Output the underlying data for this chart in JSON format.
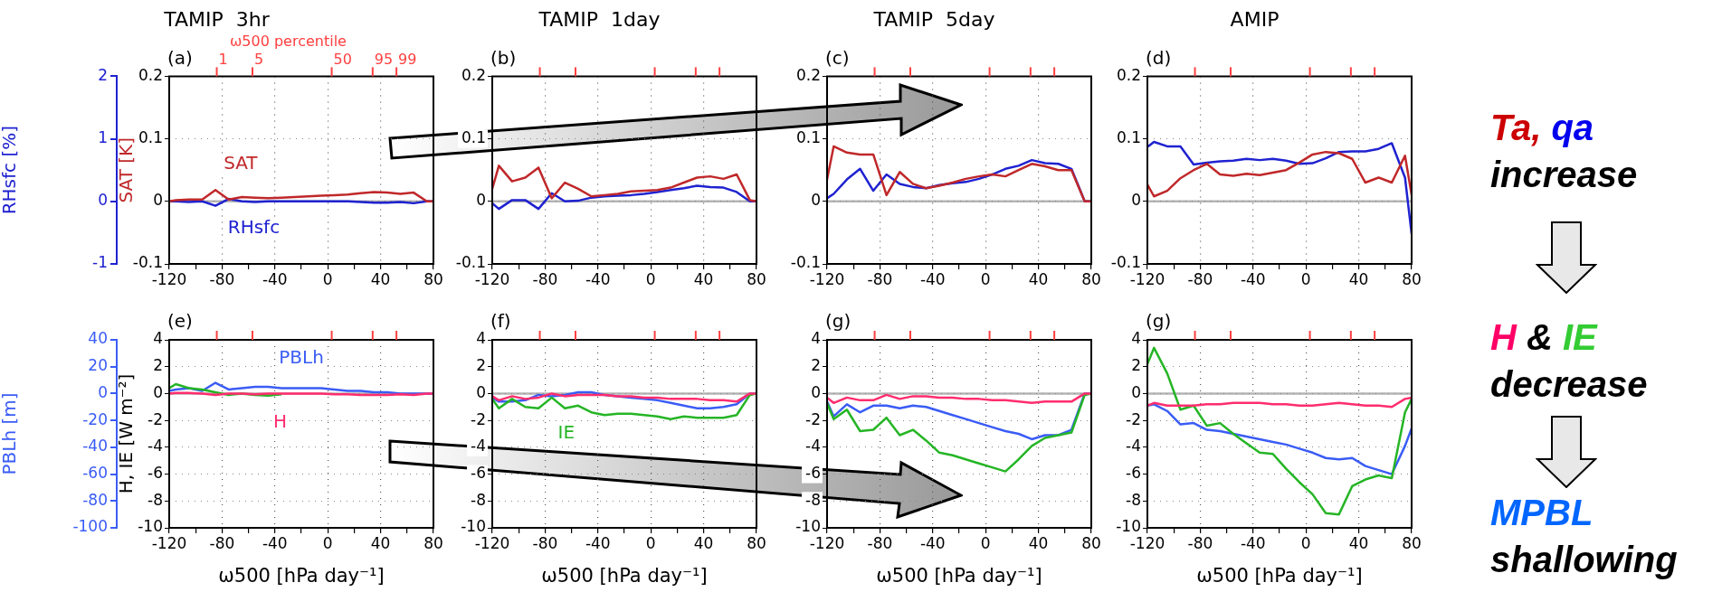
{
  "chart_data": [
    {
      "type": "line",
      "title": "TAMIP  3hr",
      "annotations": [
        "(a)",
        "ω500 percentile",
        "1",
        "5",
        "50",
        "95",
        "99"
      ],
      "ylabel": "SAT [K]",
      "y2label": "RHsfc [%]",
      "grid": true,
      "x": [
        -120,
        -115,
        -105,
        -95,
        -85,
        -75,
        -65,
        -55,
        -45,
        -35,
        -25,
        -15,
        -5,
        5,
        15,
        25,
        35,
        45,
        55,
        65,
        75,
        80
      ],
      "xlim": [
        -120,
        80
      ],
      "xticks": [
        -120,
        {
          "value": -100,
          "label": null
        },
        -80,
        {
          "value": -60,
          "label": null
        },
        -40,
        {
          "value": -20,
          "label": null
        },
        0,
        {
          "value": 20,
          "label": null
        },
        40,
        {
          "value": 60,
          "label": null
        },
        80
      ],
      "ylim": [
        -0.1,
        0.2
      ],
      "yticks": [
        -0.1,
        0,
        0.1,
        0.2
      ],
      "y2lim": [
        -1,
        2
      ],
      "y2ticks": [
        -1,
        0,
        1,
        2
      ],
      "ref_lines": [
        {
          "axis": "y",
          "value": 0,
          "color": "#b4b4b4"
        }
      ],
      "series": [
        {
          "name": "SAT",
          "color": "#c0282a",
          "values": [
            0,
            0.002,
            0.003,
            0.003,
            0.018,
            0.003,
            0.007,
            0.006,
            0.005,
            0.006,
            0.007,
            0.008,
            0.009,
            0.01,
            0.011,
            0.013,
            0.015,
            0.014,
            0.012,
            0.014,
            0,
            0
          ]
        },
        {
          "name": "RHsfc",
          "color": "#1f22d0",
          "axis": "y2",
          "values": [
            0,
            0,
            -0.01,
            0,
            -0.07,
            0.04,
            0,
            -0.01,
            0,
            0,
            0,
            0,
            0,
            0,
            0,
            -0.01,
            -0.02,
            -0.02,
            -0.01,
            -0.03,
            0,
            0
          ]
        }
      ]
    },
    {
      "type": "line",
      "title": "TAMIP  1day",
      "annotations": [
        "(b)"
      ],
      "grid": true,
      "tick_labels": "xy",
      "x": [
        -120,
        -115,
        -105,
        -95,
        -85,
        -75,
        -65,
        -55,
        -45,
        -35,
        -25,
        -15,
        -5,
        5,
        15,
        25,
        35,
        45,
        55,
        65,
        75,
        80
      ],
      "xlim": [
        -120,
        80
      ],
      "xticks": [
        -120,
        {
          "value": -100,
          "label": null
        },
        -80,
        {
          "value": -60,
          "label": null
        },
        -40,
        {
          "value": -20,
          "label": null
        },
        0,
        {
          "value": 20,
          "label": null
        },
        40,
        {
          "value": 60,
          "label": null
        },
        80
      ],
      "ylim": [
        -0.1,
        0.2
      ],
      "yticks": [
        -0.1,
        0,
        0.1,
        0.2
      ],
      "y2lim": [
        -1,
        2
      ],
      "ref_lines": [
        {
          "axis": "y",
          "value": 0,
          "color": "#b4b4b4"
        }
      ],
      "series": [
        {
          "color": "#c0282a",
          "values": [
            0.02,
            0.057,
            0.032,
            0.038,
            0.054,
            0.005,
            0.03,
            0.02,
            0.008,
            0.01,
            0.012,
            0.016,
            0.017,
            0.018,
            0.022,
            0.03,
            0.038,
            0.04,
            0.036,
            0.043,
            0.002,
            0
          ]
        },
        {
          "color": "#1f22d0",
          "axis": "y2",
          "values": [
            -0.03,
            -0.12,
            0.02,
            0.02,
            -0.12,
            0.13,
            0,
            0.01,
            0.06,
            0.08,
            0.09,
            0.1,
            0.12,
            0.15,
            0.18,
            0.21,
            0.25,
            0.23,
            0.22,
            0.15,
            0,
            0
          ]
        }
      ]
    },
    {
      "type": "line",
      "title": "TAMIP  5day",
      "annotations": [
        "(c)"
      ],
      "grid": true,
      "tick_labels": "xy",
      "x": [
        -120,
        -115,
        -105,
        -95,
        -85,
        -75,
        -65,
        -55,
        -45,
        -35,
        -25,
        -15,
        -5,
        5,
        15,
        25,
        35,
        45,
        55,
        65,
        75,
        80
      ],
      "xlim": [
        -120,
        80
      ],
      "xticks": [
        -120,
        {
          "value": -100,
          "label": null
        },
        -80,
        {
          "value": -60,
          "label": null
        },
        -40,
        {
          "value": -20,
          "label": null
        },
        0,
        {
          "value": 20,
          "label": null
        },
        40,
        {
          "value": 60,
          "label": null
        },
        80
      ],
      "ylim": [
        -0.1,
        0.2
      ],
      "yticks": [
        -0.1,
        0,
        0.1,
        0.2
      ],
      "y2lim": [
        -1,
        2
      ],
      "ref_lines": [
        {
          "axis": "y",
          "value": 0,
          "color": "#b4b4b4"
        }
      ],
      "series": [
        {
          "color": "#c0282a",
          "values": [
            0.035,
            0.088,
            0.078,
            0.075,
            0.075,
            0.01,
            0.047,
            0.028,
            0.021,
            0.025,
            0.03,
            0.036,
            0.04,
            0.043,
            0.04,
            0.05,
            0.06,
            0.056,
            0.05,
            0.05,
            0,
            0
          ]
        },
        {
          "color": "#1f22d0",
          "axis": "y2",
          "values": [
            0.05,
            0.12,
            0.35,
            0.52,
            0.17,
            0.43,
            0.28,
            0.23,
            0.21,
            0.26,
            0.29,
            0.31,
            0.36,
            0.43,
            0.52,
            0.57,
            0.66,
            0.61,
            0.6,
            0.52,
            0,
            0
          ]
        }
      ]
    },
    {
      "type": "line",
      "title": "AMIP",
      "annotations": [
        "(d)"
      ],
      "grid": true,
      "tick_labels": "xy",
      "x": [
        -120,
        -115,
        -105,
        -95,
        -85,
        -75,
        -65,
        -55,
        -45,
        -35,
        -25,
        -15,
        -5,
        5,
        15,
        25,
        35,
        45,
        55,
        65,
        75,
        80
      ],
      "xlim": [
        -120,
        80
      ],
      "xticks": [
        -120,
        {
          "value": -100,
          "label": null
        },
        -80,
        {
          "value": -60,
          "label": null
        },
        -40,
        {
          "value": -20,
          "label": null
        },
        0,
        {
          "value": 20,
          "label": null
        },
        40,
        {
          "value": 60,
          "label": null
        },
        80
      ],
      "ylim": [
        -0.1,
        0.2
      ],
      "yticks": [
        -0.1,
        0,
        0.1,
        0.2
      ],
      "y2lim": [
        -1,
        2
      ],
      "ref_lines": [
        {
          "axis": "y",
          "value": 0,
          "color": "#b4b4b4"
        }
      ],
      "series": [
        {
          "color": "#c0282a",
          "values": [
            0.027,
            0.008,
            0.017,
            0.037,
            0.05,
            0.06,
            0.043,
            0.041,
            0.044,
            0.042,
            0.046,
            0.05,
            0.062,
            0.075,
            0.079,
            0.077,
            0.068,
            0.03,
            0.038,
            0.03,
            0.073,
            0.01
          ]
        },
        {
          "color": "#1f22d0",
          "axis": "y2",
          "values": [
            0.87,
            0.95,
            0.88,
            0.88,
            0.59,
            0.62,
            0.64,
            0.65,
            0.68,
            0.66,
            0.68,
            0.65,
            0.6,
            0.61,
            0.69,
            0.79,
            0.8,
            0.8,
            0.84,
            0.93,
            0.38,
            -0.52
          ]
        }
      ]
    },
    {
      "type": "line",
      "annotations": [
        "(e)"
      ],
      "xlabel": "ω500 [hPa day⁻¹]",
      "ylabel": "H, IE [W m⁻²]",
      "y2label": "PBLh [m]",
      "grid": true,
      "x": [
        -120,
        -115,
        -105,
        -95,
        -85,
        -75,
        -65,
        -55,
        -45,
        -35,
        -25,
        -15,
        -5,
        5,
        15,
        25,
        35,
        45,
        55,
        65,
        75,
        80
      ],
      "xlim": [
        -120,
        80
      ],
      "xticks": [
        -120,
        {
          "value": -100,
          "label": null
        },
        -80,
        {
          "value": -60,
          "label": null
        },
        -40,
        {
          "value": -20,
          "label": null
        },
        0,
        {
          "value": 20,
          "label": null
        },
        40,
        {
          "value": 60,
          "label": null
        },
        80
      ],
      "ylim": [
        -10,
        4
      ],
      "yticks": [
        -10,
        -8,
        -6,
        -4,
        -2,
        0,
        2,
        4
      ],
      "y2lim": [
        -100,
        40
      ],
      "y2ticks": [
        -100,
        -80,
        -60,
        -40,
        -20,
        0,
        20,
        40
      ],
      "ref_lines": [
        {
          "axis": "y",
          "value": 0,
          "color": "#b4b4b4"
        }
      ],
      "series": [
        {
          "name": "H",
          "color": "#ff2d6e",
          "values": [
            0,
            0.05,
            0.05,
            0,
            -0.1,
            0,
            0,
            -0.05,
            0,
            0,
            0,
            0,
            0,
            -0.05,
            -0.05,
            -0.1,
            -0.1,
            -0.1,
            -0.05,
            -0.1,
            0,
            0
          ]
        },
        {
          "color": "#25b525",
          "values": [
            0.4,
            0.7,
            0.4,
            0.3,
            0.1,
            -0.1,
            0,
            -0.1,
            -0.15,
            -0.05,
            null,
            null,
            null,
            null,
            null,
            null,
            null,
            null,
            null,
            null,
            null,
            null
          ]
        },
        {
          "name": "PBLh",
          "color": "#3a5cf5",
          "axis": "y2",
          "values": [
            2,
            3,
            4,
            2,
            8,
            3,
            4,
            5,
            5,
            4,
            4,
            4,
            4,
            3,
            2,
            2,
            1,
            1,
            0,
            0,
            0,
            0
          ]
        }
      ]
    },
    {
      "type": "line",
      "annotations": [
        "(f)"
      ],
      "xlabel": "ω500 [hPa day⁻¹]",
      "grid": true,
      "tick_labels": "xy",
      "x": [
        -120,
        -115,
        -105,
        -95,
        -85,
        -75,
        -65,
        -55,
        -45,
        -35,
        -25,
        -15,
        -5,
        5,
        15,
        25,
        35,
        45,
        55,
        65,
        75,
        80
      ],
      "xlim": [
        -120,
        80
      ],
      "xticks": [
        -120,
        {
          "value": -100,
          "label": null
        },
        -80,
        {
          "value": -60,
          "label": null
        },
        -40,
        {
          "value": -20,
          "label": null
        },
        0,
        {
          "value": 20,
          "label": null
        },
        40,
        {
          "value": 60,
          "label": null
        },
        80
      ],
      "ylim": [
        -10,
        4
      ],
      "yticks": [
        -10,
        -8,
        -6,
        -4,
        -2,
        0,
        2,
        4
      ],
      "y2lim": [
        -100,
        40
      ],
      "ref_lines": [
        {
          "axis": "y",
          "value": 0,
          "color": "#b4b4b4"
        }
      ],
      "series": [
        {
          "color": "#ff2d6e",
          "values": [
            -0.2,
            -0.5,
            -0.2,
            -0.4,
            -0.3,
            0,
            -0.2,
            -0.1,
            -0.1,
            -0.1,
            -0.2,
            -0.2,
            -0.3,
            -0.3,
            -0.4,
            -0.4,
            -0.4,
            -0.5,
            -0.5,
            -0.6,
            0,
            0
          ]
        },
        {
          "name": "IE",
          "color": "#25b525",
          "values": [
            -0.4,
            -1.1,
            -0.4,
            -1.0,
            -1.1,
            -0.3,
            -1.1,
            -0.9,
            -1.4,
            -1.6,
            -1.5,
            -1.5,
            -1.6,
            -1.7,
            -1.9,
            -1.7,
            -1.8,
            -1.8,
            -1.8,
            -1.6,
            -0.1,
            0
          ]
        },
        {
          "color": "#3a5cf5",
          "axis": "y2",
          "values": [
            -3,
            -6,
            -6,
            -5,
            -1,
            -2,
            -1,
            1,
            1,
            -1,
            -2,
            -3,
            -4,
            -5,
            -7,
            -9,
            -11,
            -11,
            -10,
            -8,
            0,
            0
          ]
        }
      ]
    },
    {
      "type": "line",
      "annotations": [
        "(g)"
      ],
      "xlabel": "ω500 [hPa day⁻¹]",
      "grid": true,
      "tick_labels": "xy",
      "x": [
        -120,
        -115,
        -105,
        -95,
        -85,
        -75,
        -65,
        -55,
        -45,
        -35,
        -25,
        -15,
        -5,
        5,
        15,
        25,
        35,
        45,
        55,
        65,
        75,
        80
      ],
      "xlim": [
        -120,
        80
      ],
      "xticks": [
        -120,
        {
          "value": -100,
          "label": null
        },
        -80,
        {
          "value": -60,
          "label": null
        },
        -40,
        {
          "value": -20,
          "label": null
        },
        0,
        {
          "value": 20,
          "label": null
        },
        40,
        {
          "value": 60,
          "label": null
        },
        80
      ],
      "ylim": [
        -10,
        4
      ],
      "yticks": [
        -10,
        -8,
        -6,
        -4,
        -2,
        0,
        2,
        4
      ],
      "y2lim": [
        -100,
        40
      ],
      "ref_lines": [
        {
          "axis": "y",
          "value": 0,
          "color": "#b4b4b4"
        }
      ],
      "series": [
        {
          "color": "#ff2d6e",
          "values": [
            -0.3,
            -0.7,
            -0.3,
            -0.5,
            -0.5,
            -0.1,
            -0.4,
            -0.2,
            -0.2,
            -0.3,
            -0.3,
            -0.4,
            -0.4,
            -0.5,
            -0.5,
            -0.6,
            -0.7,
            -0.6,
            -0.6,
            -0.6,
            0,
            0
          ]
        },
        {
          "color": "#25b525",
          "values": [
            -0.7,
            -1.9,
            -1.2,
            -2.8,
            -2.7,
            -1.8,
            -3.1,
            -2.7,
            -3.5,
            -4.4,
            -4.6,
            -4.9,
            -5.2,
            -5.5,
            -5.8,
            -4.9,
            -3.9,
            -3.3,
            -3.1,
            -2.9,
            -0.1,
            0
          ]
        },
        {
          "color": "#3a5cf5",
          "axis": "y2",
          "values": [
            -6,
            -17,
            -8,
            -14,
            -9,
            -9,
            -11,
            -9,
            -10,
            -13,
            -16,
            -19,
            -22,
            -25,
            -28,
            -30,
            -34,
            -31,
            -31,
            -27,
            0,
            0
          ]
        }
      ]
    },
    {
      "type": "line",
      "annotations": [
        "(g)"
      ],
      "xlabel": "ω500 [hPa day⁻¹]",
      "grid": true,
      "tick_labels": "xy",
      "x": [
        -120,
        -115,
        -105,
        -95,
        -85,
        -75,
        -65,
        -55,
        -45,
        -35,
        -25,
        -15,
        -5,
        5,
        15,
        25,
        35,
        45,
        55,
        65,
        75,
        80
      ],
      "xlim": [
        -120,
        80
      ],
      "xticks": [
        -120,
        {
          "value": -100,
          "label": null
        },
        -80,
        {
          "value": -60,
          "label": null
        },
        -40,
        {
          "value": -20,
          "label": null
        },
        0,
        {
          "value": 20,
          "label": null
        },
        40,
        {
          "value": 60,
          "label": null
        },
        80
      ],
      "ylim": [
        -10,
        4
      ],
      "yticks": [
        -10,
        -8,
        -6,
        -4,
        -2,
        0,
        2,
        4
      ],
      "y2lim": [
        -100,
        40
      ],
      "ref_lines": [
        {
          "axis": "y",
          "value": 0,
          "color": "#b4b4b4"
        }
      ],
      "series": [
        {
          "color": "#ff2d6e",
          "values": [
            -0.9,
            -0.7,
            -0.9,
            -0.9,
            -0.9,
            -0.8,
            -0.8,
            -0.7,
            -0.7,
            -0.7,
            -0.8,
            -0.8,
            -0.9,
            -0.9,
            -0.8,
            -0.7,
            -0.8,
            -0.9,
            -0.9,
            -1.0,
            -0.4,
            -0.3
          ]
        },
        {
          "color": "#25b525",
          "values": [
            2.2,
            3.4,
            1.5,
            -1.2,
            -0.9,
            -2.4,
            -2.2,
            -3.0,
            -3.7,
            -4.4,
            -4.5,
            -5.6,
            -6.6,
            -7.5,
            -8.9,
            -9.0,
            -6.9,
            -6.4,
            -6.1,
            -6.3,
            -1.4,
            -0.4
          ]
        },
        {
          "color": "#3a5cf5",
          "axis": "y2",
          "values": [
            -9,
            -8,
            -13,
            -23,
            -22,
            -27,
            -28,
            -30,
            -32,
            -34,
            -36,
            -38,
            -41,
            -44,
            -48,
            -49,
            -48,
            -54,
            -57,
            -60,
            -39,
            -26
          ]
        }
      ]
    },
    {
      "type": "other",
      "annotations": [
        "Ta,",
        "qa",
        "increase",
        "H",
        "&",
        "IE",
        "decrease",
        "MPBL",
        "shallowing"
      ]
    }
  ]
}
